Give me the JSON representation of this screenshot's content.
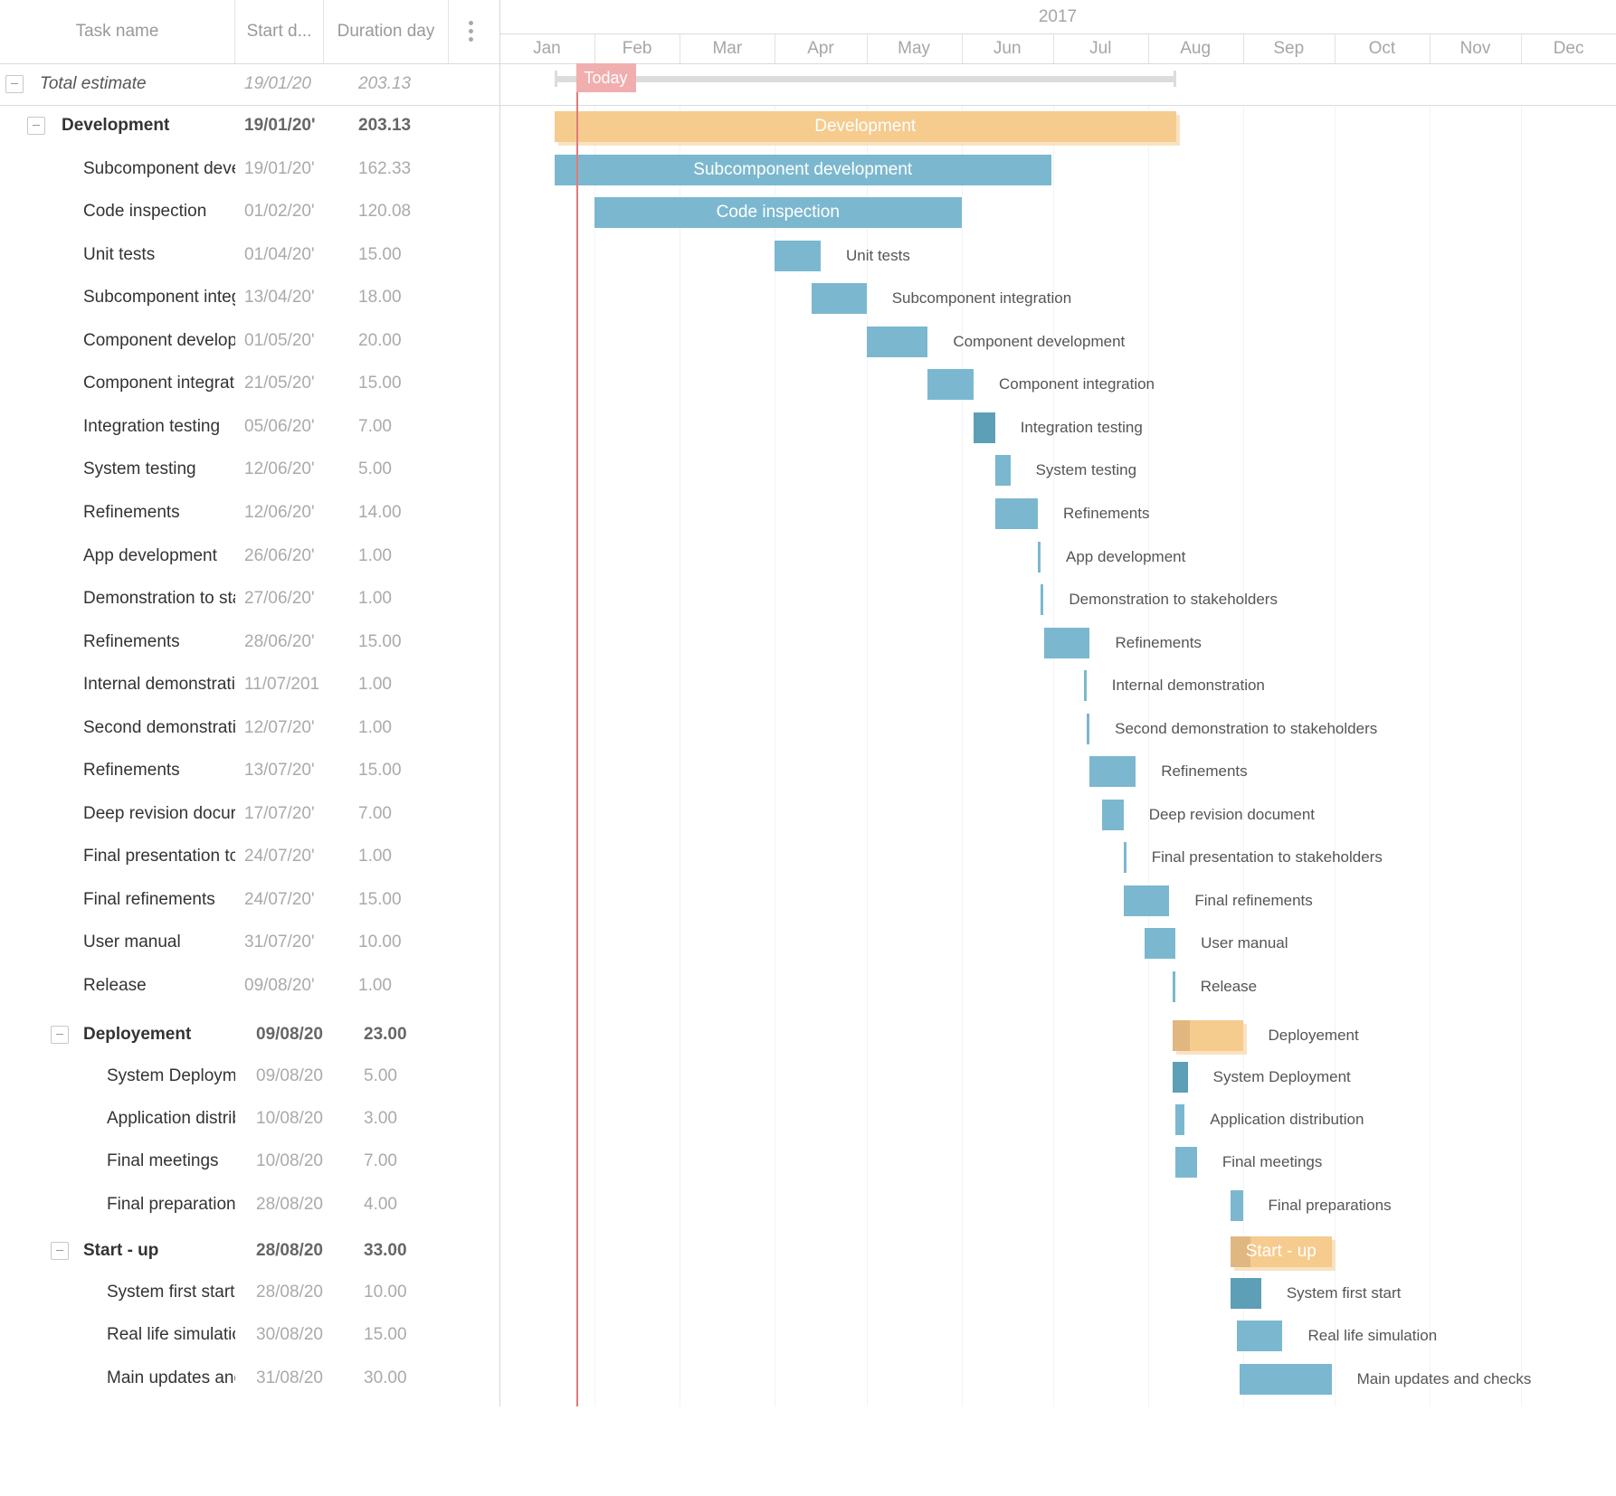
{
  "header": {
    "task_name": "Task name",
    "start_date": "Start d...",
    "duration": "Duration day",
    "menu_icon": "vertical-ellipsis-icon"
  },
  "timeline": {
    "year": "2017",
    "months": [
      "Jan",
      "Feb",
      "Mar",
      "Apr",
      "May",
      "Jun",
      "Jul",
      "Aug",
      "Sep",
      "Oct",
      "Nov",
      "Dec"
    ],
    "today_label": "Today",
    "today_date": "2017-01-26"
  },
  "colors": {
    "task_bar": "#7bb8cf",
    "task_bar_dark": "#5d9fb7",
    "group_bar": "#f5cb8e",
    "group_bar_shadow": "#f8e2c2",
    "today_line": "#e07a7a",
    "today_label_bg": "#f1aeae",
    "summary_line": "#dcdcdc"
  },
  "rows": [
    {
      "name": "Total estimate",
      "start": "19/01/20",
      "duration": "203.13",
      "type": "total",
      "level": 0,
      "bar_start": "2017-01-19",
      "days": 203.13
    },
    {
      "name": "Development",
      "start": "19/01/20'",
      "duration": "203.13",
      "type": "group",
      "level": 1,
      "bar_start": "2017-01-19",
      "days": 203.13,
      "bar_label": "Development"
    },
    {
      "name": "Subcomponent deve",
      "start": "19/01/20'",
      "duration": "162.33",
      "type": "task",
      "level": 2,
      "bar_start": "2017-01-19",
      "days": 162.33,
      "bar_label": "Subcomponent development"
    },
    {
      "name": "Code inspection",
      "start": "01/02/20'",
      "duration": "120.08",
      "type": "task",
      "level": 2,
      "bar_start": "2017-02-01",
      "days": 120.08,
      "bar_label": "Code inspection"
    },
    {
      "name": "Unit tests",
      "start": "01/04/20'",
      "duration": "15.00",
      "type": "task",
      "level": 2,
      "bar_start": "2017-04-01",
      "days": 15,
      "bar_label": "Unit tests"
    },
    {
      "name": "Subcomponent integ",
      "start": "13/04/20'",
      "duration": "18.00",
      "type": "task",
      "level": 2,
      "bar_start": "2017-04-13",
      "days": 18,
      "bar_label": "Subcomponent integration"
    },
    {
      "name": "Component develop",
      "start": "01/05/20'",
      "duration": "20.00",
      "type": "task",
      "level": 2,
      "bar_start": "2017-05-01",
      "days": 20,
      "bar_label": "Component development"
    },
    {
      "name": "Component integrat",
      "start": "21/05/20'",
      "duration": "15.00",
      "type": "task",
      "level": 2,
      "bar_start": "2017-05-21",
      "days": 15,
      "bar_label": "Component integration"
    },
    {
      "name": "Integration testing",
      "start": "05/06/20'",
      "duration": "7.00",
      "type": "task",
      "level": 2,
      "bar_start": "2017-06-05",
      "days": 7,
      "bar_label": "Integration testing",
      "dark": true
    },
    {
      "name": "System testing",
      "start": "12/06/20'",
      "duration": "5.00",
      "type": "task",
      "level": 2,
      "bar_start": "2017-06-12",
      "days": 5,
      "bar_label": "System testing"
    },
    {
      "name": "Refinements",
      "start": "12/06/20'",
      "duration": "14.00",
      "type": "task",
      "level": 2,
      "bar_start": "2017-06-12",
      "days": 14,
      "bar_label": "Refinements"
    },
    {
      "name": "App development",
      "start": "26/06/20'",
      "duration": "1.00",
      "type": "task",
      "level": 2,
      "bar_start": "2017-06-26",
      "days": 1,
      "bar_label": "App development"
    },
    {
      "name": "Demonstration to sta",
      "start": "27/06/20'",
      "duration": "1.00",
      "type": "task",
      "level": 2,
      "bar_start": "2017-06-27",
      "days": 1,
      "bar_label": "Demonstration to stakeholders"
    },
    {
      "name": "Refinements",
      "start": "28/06/20'",
      "duration": "15.00",
      "type": "task",
      "level": 2,
      "bar_start": "2017-06-28",
      "days": 15,
      "bar_label": "Refinements"
    },
    {
      "name": "Internal demonstrati",
      "start": "11/07/201",
      "duration": "1.00",
      "type": "task",
      "level": 2,
      "bar_start": "2017-07-11",
      "days": 1,
      "bar_label": "Internal demonstration"
    },
    {
      "name": "Second demonstrati",
      "start": "12/07/20'",
      "duration": "1.00",
      "type": "task",
      "level": 2,
      "bar_start": "2017-07-12",
      "days": 1,
      "bar_label": "Second demonstration to stakeholders"
    },
    {
      "name": "Refinements",
      "start": "13/07/20'",
      "duration": "15.00",
      "type": "task",
      "level": 2,
      "bar_start": "2017-07-13",
      "days": 15,
      "bar_label": "Refinements"
    },
    {
      "name": "Deep revision docur",
      "start": "17/07/20'",
      "duration": "7.00",
      "type": "task",
      "level": 2,
      "bar_start": "2017-07-17",
      "days": 7,
      "bar_label": "Deep revision document"
    },
    {
      "name": "Final presentation tc",
      "start": "24/07/20'",
      "duration": "1.00",
      "type": "task",
      "level": 2,
      "bar_start": "2017-07-24",
      "days": 1,
      "bar_label": "Final presentation to stakeholders"
    },
    {
      "name": "Final refinements",
      "start": "24/07/20'",
      "duration": "15.00",
      "type": "task",
      "level": 2,
      "bar_start": "2017-07-24",
      "days": 15,
      "bar_label": "Final refinements"
    },
    {
      "name": "User manual",
      "start": "31/07/20'",
      "duration": "10.00",
      "type": "task",
      "level": 2,
      "bar_start": "2017-07-31",
      "days": 10,
      "bar_label": "User manual"
    },
    {
      "name": "Release",
      "start": "09/08/20'",
      "duration": "1.00",
      "type": "task",
      "level": 2,
      "bar_start": "2017-08-09",
      "days": 1,
      "bar_label": "Release"
    },
    {
      "name": "Deployement",
      "start": "09/08/20",
      "duration": "23.00",
      "type": "group",
      "level": 2,
      "bar_start": "2017-08-09",
      "days": 23,
      "bar_label": "Deployement",
      "progress": 0.25
    },
    {
      "name": "System Deployme",
      "start": "09/08/20",
      "duration": "5.00",
      "type": "task",
      "level": 3,
      "bar_start": "2017-08-09",
      "days": 5,
      "bar_label": "System Deployment",
      "dark": true
    },
    {
      "name": "Application distribu",
      "start": "10/08/20",
      "duration": "3.00",
      "type": "task",
      "level": 3,
      "bar_start": "2017-08-10",
      "days": 3,
      "bar_label": "Application distribution"
    },
    {
      "name": "Final meetings",
      "start": "10/08/20",
      "duration": "7.00",
      "type": "task",
      "level": 3,
      "bar_start": "2017-08-10",
      "days": 7,
      "bar_label": "Final meetings"
    },
    {
      "name": "Final preparations",
      "start": "28/08/20",
      "duration": "4.00",
      "type": "task",
      "level": 3,
      "bar_start": "2017-08-28",
      "days": 4,
      "bar_label": "Final preparations"
    },
    {
      "name": "Start - up",
      "start": "28/08/20",
      "duration": "33.00",
      "type": "group",
      "level": 2,
      "bar_start": "2017-08-28",
      "days": 33,
      "bar_label": "Start - up",
      "progress": 0.2
    },
    {
      "name": "System first start",
      "start": "28/08/20",
      "duration": "10.00",
      "type": "task",
      "level": 3,
      "bar_start": "2017-08-28",
      "days": 10,
      "bar_label": "System first start",
      "dark": true
    },
    {
      "name": "Real life simulatior",
      "start": "30/08/20",
      "duration": "15.00",
      "type": "task",
      "level": 3,
      "bar_start": "2017-08-30",
      "days": 15,
      "bar_label": "Real life simulation"
    },
    {
      "name": "Main updates and",
      "start": "31/08/20",
      "duration": "30.00",
      "type": "task",
      "level": 3,
      "bar_start": "2017-08-31",
      "days": 30,
      "bar_label": "Main updates and checks"
    }
  ]
}
